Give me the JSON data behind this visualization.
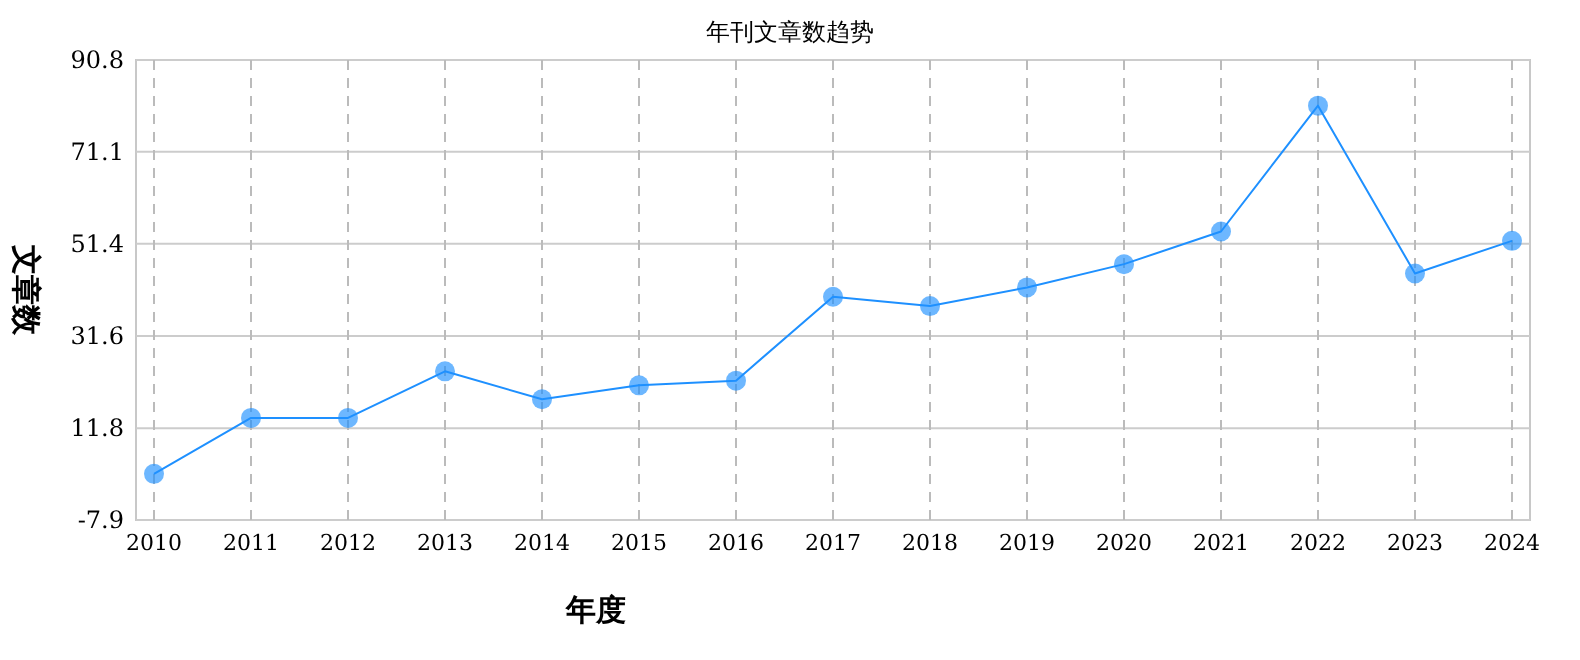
{
  "chart_data": {
    "type": "line",
    "title": "年刊文章数趋势",
    "xlabel": "年度",
    "ylabel": "文章数",
    "categories": [
      "2010",
      "2011",
      "2012",
      "2013",
      "2014",
      "2015",
      "2016",
      "2017",
      "2018",
      "2019",
      "2020",
      "2021",
      "2022",
      "2023",
      "2024"
    ],
    "series": [
      {
        "color": "#1e90ff",
        "values": [
          2,
          14,
          14,
          24,
          18,
          21,
          22,
          40,
          38,
          42,
          47,
          54,
          81,
          45,
          52
        ]
      }
    ],
    "ylim": [
      -7.9,
      90.8
    ],
    "yticks": [
      -7.9,
      11.8,
      31.6,
      51.4,
      71.1,
      90.8
    ],
    "grid": true,
    "marker": "circle",
    "line_style": "solid"
  }
}
